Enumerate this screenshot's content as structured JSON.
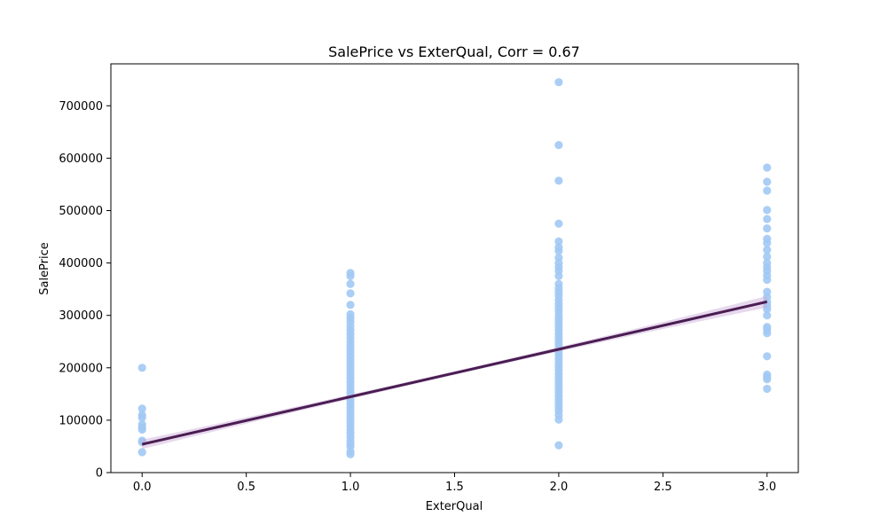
{
  "chart_data": {
    "type": "scatter",
    "title": "SalePrice vs ExterQual, Corr = 0.67",
    "xlabel": "ExterQual",
    "ylabel": "SalePrice",
    "xlim": [
      -0.15,
      3.15
    ],
    "ylim": [
      0,
      780000
    ],
    "xticks": [
      0.0,
      0.5,
      1.0,
      1.5,
      2.0,
      2.5,
      3.0
    ],
    "xtick_labels": [
      "0.0",
      "0.5",
      "1.0",
      "1.5",
      "2.0",
      "2.5",
      "3.0"
    ],
    "yticks": [
      0,
      100000,
      200000,
      300000,
      400000,
      500000,
      600000,
      700000
    ],
    "ytick_labels": [
      "0",
      "100000",
      "200000",
      "300000",
      "400000",
      "500000",
      "600000",
      "700000"
    ],
    "grid": false,
    "legend": "none",
    "point_color": "#a1c9f4",
    "line_color": "#4a1d52",
    "band_color": "#c9a9d6",
    "points": [
      {
        "x": 0,
        "y": 200000
      },
      {
        "x": 0,
        "y": 122000
      },
      {
        "x": 0,
        "y": 110000
      },
      {
        "x": 0,
        "y": 105000
      },
      {
        "x": 0,
        "y": 92000
      },
      {
        "x": 0,
        "y": 86000
      },
      {
        "x": 0,
        "y": 82000
      },
      {
        "x": 0,
        "y": 61000
      },
      {
        "x": 0,
        "y": 58000
      },
      {
        "x": 0,
        "y": 39000
      },
      {
        "x": 1,
        "y": 381000
      },
      {
        "x": 1,
        "y": 375000
      },
      {
        "x": 1,
        "y": 360000
      },
      {
        "x": 1,
        "y": 342000
      },
      {
        "x": 1,
        "y": 320000
      },
      {
        "x": 1,
        "y": 302000
      },
      {
        "x": 1,
        "y": 295000
      },
      {
        "x": 1,
        "y": 288000
      },
      {
        "x": 1,
        "y": 280000
      },
      {
        "x": 1,
        "y": 272000
      },
      {
        "x": 1,
        "y": 265000
      },
      {
        "x": 1,
        "y": 258000
      },
      {
        "x": 1,
        "y": 250000
      },
      {
        "x": 1,
        "y": 243000
      },
      {
        "x": 1,
        "y": 236000
      },
      {
        "x": 1,
        "y": 229000
      },
      {
        "x": 1,
        "y": 222000
      },
      {
        "x": 1,
        "y": 215000
      },
      {
        "x": 1,
        "y": 208000
      },
      {
        "x": 1,
        "y": 201000
      },
      {
        "x": 1,
        "y": 194000
      },
      {
        "x": 1,
        "y": 187000
      },
      {
        "x": 1,
        "y": 180000
      },
      {
        "x": 1,
        "y": 173000
      },
      {
        "x": 1,
        "y": 166000
      },
      {
        "x": 1,
        "y": 159000
      },
      {
        "x": 1,
        "y": 152000
      },
      {
        "x": 1,
        "y": 145000
      },
      {
        "x": 1,
        "y": 138000
      },
      {
        "x": 1,
        "y": 131000
      },
      {
        "x": 1,
        "y": 124000
      },
      {
        "x": 1,
        "y": 117000
      },
      {
        "x": 1,
        "y": 110000
      },
      {
        "x": 1,
        "y": 103000
      },
      {
        "x": 1,
        "y": 96000
      },
      {
        "x": 1,
        "y": 89000
      },
      {
        "x": 1,
        "y": 82000
      },
      {
        "x": 1,
        "y": 75000
      },
      {
        "x": 1,
        "y": 68000
      },
      {
        "x": 1,
        "y": 61000
      },
      {
        "x": 1,
        "y": 55000
      },
      {
        "x": 1,
        "y": 50000
      },
      {
        "x": 1,
        "y": 40000
      },
      {
        "x": 1,
        "y": 35000
      },
      {
        "x": 2,
        "y": 745000
      },
      {
        "x": 2,
        "y": 625000
      },
      {
        "x": 2,
        "y": 557000
      },
      {
        "x": 2,
        "y": 475000
      },
      {
        "x": 2,
        "y": 441000
      },
      {
        "x": 2,
        "y": 430000
      },
      {
        "x": 2,
        "y": 423000
      },
      {
        "x": 2,
        "y": 410000
      },
      {
        "x": 2,
        "y": 400000
      },
      {
        "x": 2,
        "y": 392000
      },
      {
        "x": 2,
        "y": 385000
      },
      {
        "x": 2,
        "y": 375000
      },
      {
        "x": 2,
        "y": 360000
      },
      {
        "x": 2,
        "y": 352000
      },
      {
        "x": 2,
        "y": 345000
      },
      {
        "x": 2,
        "y": 338000
      },
      {
        "x": 2,
        "y": 330000
      },
      {
        "x": 2,
        "y": 322000
      },
      {
        "x": 2,
        "y": 315000
      },
      {
        "x": 2,
        "y": 308000
      },
      {
        "x": 2,
        "y": 300000
      },
      {
        "x": 2,
        "y": 293000
      },
      {
        "x": 2,
        "y": 286000
      },
      {
        "x": 2,
        "y": 279000
      },
      {
        "x": 2,
        "y": 272000
      },
      {
        "x": 2,
        "y": 265000
      },
      {
        "x": 2,
        "y": 258000
      },
      {
        "x": 2,
        "y": 251000
      },
      {
        "x": 2,
        "y": 244000
      },
      {
        "x": 2,
        "y": 237000
      },
      {
        "x": 2,
        "y": 230000
      },
      {
        "x": 2,
        "y": 223000
      },
      {
        "x": 2,
        "y": 216000
      },
      {
        "x": 2,
        "y": 209000
      },
      {
        "x": 2,
        "y": 202000
      },
      {
        "x": 2,
        "y": 195000
      },
      {
        "x": 2,
        "y": 188000
      },
      {
        "x": 2,
        "y": 181000
      },
      {
        "x": 2,
        "y": 174000
      },
      {
        "x": 2,
        "y": 167000
      },
      {
        "x": 2,
        "y": 160000
      },
      {
        "x": 2,
        "y": 153000
      },
      {
        "x": 2,
        "y": 146000
      },
      {
        "x": 2,
        "y": 139000
      },
      {
        "x": 2,
        "y": 132000
      },
      {
        "x": 2,
        "y": 125000
      },
      {
        "x": 2,
        "y": 118000
      },
      {
        "x": 2,
        "y": 110000
      },
      {
        "x": 2,
        "y": 101000
      },
      {
        "x": 2,
        "y": 52000
      },
      {
        "x": 3,
        "y": 582000
      },
      {
        "x": 3,
        "y": 555000
      },
      {
        "x": 3,
        "y": 538000
      },
      {
        "x": 3,
        "y": 501000
      },
      {
        "x": 3,
        "y": 484000
      },
      {
        "x": 3,
        "y": 466000
      },
      {
        "x": 3,
        "y": 446000
      },
      {
        "x": 3,
        "y": 438000
      },
      {
        "x": 3,
        "y": 425000
      },
      {
        "x": 3,
        "y": 412000
      },
      {
        "x": 3,
        "y": 400000
      },
      {
        "x": 3,
        "y": 392000
      },
      {
        "x": 3,
        "y": 385000
      },
      {
        "x": 3,
        "y": 376000
      },
      {
        "x": 3,
        "y": 368000
      },
      {
        "x": 3,
        "y": 345000
      },
      {
        "x": 3,
        "y": 335000
      },
      {
        "x": 3,
        "y": 325000
      },
      {
        "x": 3,
        "y": 318000
      },
      {
        "x": 3,
        "y": 312000
      },
      {
        "x": 3,
        "y": 300000
      },
      {
        "x": 3,
        "y": 278000
      },
      {
        "x": 3,
        "y": 273000
      },
      {
        "x": 3,
        "y": 266000
      },
      {
        "x": 3,
        "y": 222000
      },
      {
        "x": 3,
        "y": 187000
      },
      {
        "x": 3,
        "y": 182000
      },
      {
        "x": 3,
        "y": 178000
      },
      {
        "x": 3,
        "y": 160000
      }
    ],
    "regression": {
      "x_start": 0.0,
      "y_start": 54000,
      "x_end": 3.0,
      "y_end": 326000,
      "ci_halfwidth_start": 9000,
      "ci_halfwidth_mid": 3500,
      "ci_halfwidth_end": 11000
    }
  }
}
